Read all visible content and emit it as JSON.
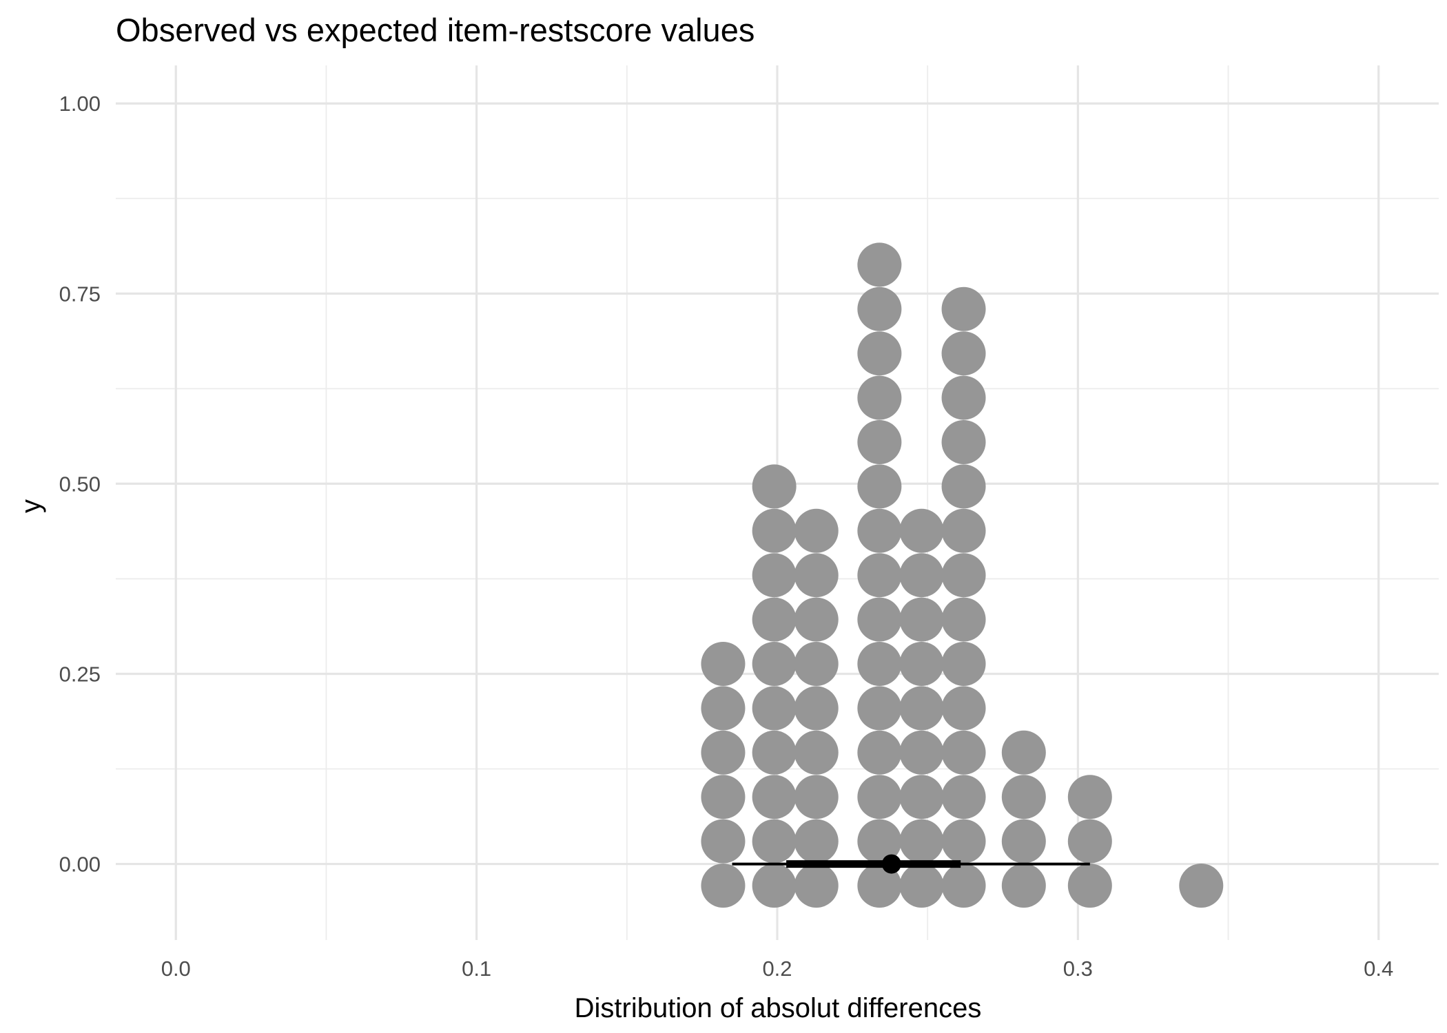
{
  "chart_data": {
    "type": "dotplot",
    "title": "Observed vs expected item-restscore values",
    "xlabel": "Distribution of absolut differences",
    "ylabel": "y",
    "xlim": [
      -0.02,
      0.42
    ],
    "ylim": [
      -0.1,
      1.05
    ],
    "x_ticks": [
      0.0,
      0.1,
      0.2,
      0.3,
      0.4
    ],
    "x_tick_labels": [
      "0.0",
      "0.1",
      "0.2",
      "0.3",
      "0.4"
    ],
    "y_ticks": [
      0.0,
      0.25,
      0.5,
      0.75,
      1.0
    ],
    "y_tick_labels": [
      "0.00",
      "0.25",
      "0.50",
      "0.75",
      "1.00"
    ],
    "grid": true,
    "dot_color": "#969696",
    "interval_color": "#000000",
    "stacks": [
      {
        "x": 0.182,
        "count": 6
      },
      {
        "x": 0.199,
        "count": 10
      },
      {
        "x": 0.213,
        "count": 9
      },
      {
        "x": 0.234,
        "count": 15
      },
      {
        "x": 0.248,
        "count": 9
      },
      {
        "x": 0.262,
        "count": 14
      },
      {
        "x": 0.282,
        "count": 4
      },
      {
        "x": 0.304,
        "count": 3
      },
      {
        "x": 0.341,
        "count": 1
      }
    ],
    "point_interval": {
      "median": 0.238,
      "inner": [
        0.203,
        0.261
      ],
      "outer": [
        0.185,
        0.304
      ]
    }
  }
}
